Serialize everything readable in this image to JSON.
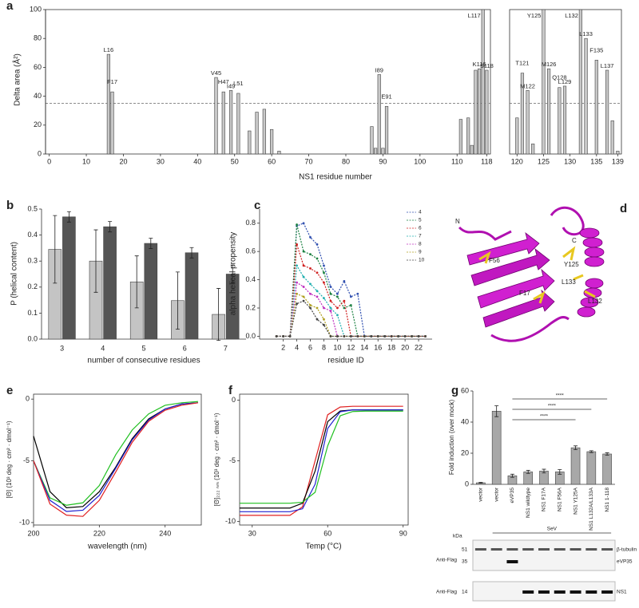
{
  "chart_data": [
    {
      "type": "bar",
      "panel": "a",
      "xlabel": "NS1 residue number",
      "ylabel": "Delta area (Å²)",
      "x": [
        16,
        17,
        45,
        47,
        49,
        51,
        54,
        56,
        58,
        60,
        62,
        87,
        88,
        89,
        90,
        91,
        111,
        113,
        114,
        115,
        116,
        117,
        118,
        120,
        121,
        122,
        123,
        125,
        126,
        128,
        129,
        132,
        133,
        135,
        137,
        138,
        139
      ],
      "values": [
        69,
        43,
        53,
        43,
        44,
        42,
        16,
        29,
        31,
        17,
        2,
        19,
        4,
        55,
        4,
        33,
        24,
        25,
        6,
        58,
        59,
        100,
        58,
        25,
        56,
        44,
        7,
        100,
        59,
        46,
        47,
        100,
        80,
        65,
        58,
        23,
        2
      ],
      "color": "#c8c8c8",
      "ylim": [
        0,
        100
      ],
      "yticks": [
        0,
        20,
        40,
        60,
        80,
        100
      ],
      "reference_line": 35,
      "segments": [
        {
          "xlim": [
            -1,
            119
          ],
          "xticks": [
            0,
            10,
            20,
            30,
            40,
            50,
            60,
            70,
            80,
            90,
            100,
            110,
            118
          ]
        },
        {
          "xlim": [
            118.6,
            139.7
          ],
          "xticks": [
            120,
            125,
            130,
            135,
            139
          ]
        }
      ],
      "annotations": [
        {
          "text": "L16",
          "x": 16
        },
        {
          "text": "F17",
          "x": 17
        },
        {
          "text": "V45",
          "x": 45
        },
        {
          "text": "H47",
          "x": 47
        },
        {
          "text": "I49",
          "x": 49
        },
        {
          "text": "L51",
          "x": 51
        },
        {
          "text": "I89",
          "x": 89
        },
        {
          "text": "E91",
          "x": 91
        },
        {
          "text": "K116",
          "x": 116
        },
        {
          "text": "L117",
          "x": 117
        },
        {
          "text": "S118",
          "x": 118
        },
        {
          "text": "T121",
          "x": 121
        },
        {
          "text": "M122",
          "x": 122
        },
        {
          "text": "Y125",
          "x": 125
        },
        {
          "text": "M126",
          "x": 126
        },
        {
          "text": "Q128",
          "x": 128
        },
        {
          "text": "L129",
          "x": 129
        },
        {
          "text": "L132",
          "x": 132
        },
        {
          "text": "L133",
          "x": 133
        },
        {
          "text": "F135",
          "x": 135
        },
        {
          "text": "L137",
          "x": 137
        }
      ]
    },
    {
      "type": "bar",
      "panel": "b",
      "xlabel": "number of consecutive residues",
      "ylabel": "P (helical content)",
      "categories": [
        "3",
        "4",
        "5",
        "6",
        "7"
      ],
      "series": [
        {
          "color": "#c4c4c4",
          "values": [
            0.345,
            0.3,
            0.22,
            0.148,
            0.095
          ],
          "errors": [
            0.13,
            0.12,
            0.1,
            0.11,
            0.1
          ]
        },
        {
          "color": "#555555",
          "values": [
            0.47,
            0.432,
            0.368,
            0.332,
            0.25
          ],
          "errors": [
            0.02,
            0.02,
            0.02,
            0.02,
            0.035
          ]
        }
      ],
      "ylim": [
        0,
        0.5
      ],
      "yticks": [
        {
          "value": 0,
          "label": "0.0"
        },
        {
          "value": 0.1,
          "label": "0.1"
        },
        {
          "value": 0.2,
          "label": "0.2"
        },
        {
          "value": 0.3,
          "label": "0.3"
        },
        {
          "value": 0.4,
          "label": "0.4"
        },
        {
          "value": 0.5,
          "label": "0.5"
        }
      ]
    },
    {
      "type": "line",
      "panel": "c",
      "xlabel": "residue ID",
      "ylabel": "alpha helical propensity",
      "dashed": true,
      "markers": true,
      "legend": "upper right",
      "x": [
        1,
        2,
        3,
        4,
        5,
        6,
        7,
        8,
        9,
        10,
        11,
        12,
        13,
        14,
        15,
        16,
        17,
        18,
        19,
        20,
        21,
        22,
        23
      ],
      "series": [
        {
          "name": "4",
          "color": "#3050b0",
          "values": [
            0,
            0,
            0,
            0.78,
            0.8,
            0.7,
            0.65,
            0.5,
            0.35,
            0.3,
            0.39,
            0.28,
            0.3,
            0,
            0,
            0,
            0,
            0,
            0,
            0,
            0,
            0,
            0
          ]
        },
        {
          "name": "5",
          "color": "#1a8040",
          "values": [
            0,
            0,
            0,
            0.79,
            0.6,
            0.58,
            0.55,
            0.45,
            0.3,
            0.28,
            0.2,
            0.22,
            0,
            0,
            0,
            0,
            0,
            0,
            0,
            0,
            0,
            0,
            0
          ]
        },
        {
          "name": "6",
          "color": "#d02020",
          "values": [
            0,
            0,
            0,
            0.65,
            0.5,
            0.48,
            0.45,
            0.38,
            0.25,
            0.2,
            0.25,
            0,
            0,
            0,
            0,
            0,
            0,
            0,
            0,
            0,
            0,
            0,
            0
          ]
        },
        {
          "name": "7",
          "color": "#20b0b0",
          "values": [
            0,
            0,
            0,
            0.5,
            0.42,
            0.37,
            0.32,
            0.27,
            0.2,
            0.15,
            0,
            0,
            0,
            0,
            0,
            0,
            0,
            0,
            0,
            0,
            0,
            0,
            0
          ]
        },
        {
          "name": "8",
          "color": "#c030c0",
          "values": [
            0,
            0,
            0,
            0.38,
            0.35,
            0.3,
            0.28,
            0.2,
            0.18,
            0,
            0,
            0,
            0,
            0,
            0,
            0,
            0,
            0,
            0,
            0,
            0,
            0,
            0
          ]
        },
        {
          "name": "9",
          "color": "#b0a020",
          "values": [
            0,
            0,
            0,
            0.3,
            0.28,
            0.22,
            0.2,
            0.12,
            0,
            0,
            0,
            0,
            0,
            0,
            0,
            0,
            0,
            0,
            0,
            0,
            0,
            0,
            0
          ]
        },
        {
          "name": "10",
          "color": "#444444",
          "values": [
            0,
            0,
            0,
            0.23,
            0.25,
            0.2,
            0.12,
            0.08,
            0,
            0,
            0,
            0,
            0,
            0,
            0,
            0,
            0,
            0,
            0,
            0,
            0,
            0,
            0
          ]
        }
      ],
      "xlim": [
        -1.5,
        24
      ],
      "xticks": [
        2,
        4,
        6,
        8,
        10,
        12,
        14,
        16,
        18,
        20,
        22
      ],
      "ylim": [
        -0.02,
        0.9
      ],
      "yticks": [
        {
          "value": 0,
          "label": "0.0"
        },
        {
          "value": 0.2,
          "label": "0.2"
        },
        {
          "value": 0.4,
          "label": "0.4"
        },
        {
          "value": 0.6,
          "label": "0.6"
        },
        {
          "value": 0.8,
          "label": "0.8"
        }
      ]
    },
    {
      "type": "line",
      "panel": "e",
      "xlabel": "wavelength (nm)",
      "ylabel": "[Θ] (10³ deg · cm² · dmol⁻¹)",
      "x": [
        200,
        205,
        210,
        215,
        220,
        225,
        230,
        235,
        240,
        245,
        250
      ],
      "series": [
        {
          "color": "#000000",
          "values": [
            -3,
            -7.5,
            -8.8,
            -8.7,
            -7.5,
            -5.5,
            -3.2,
            -1.6,
            -0.8,
            -0.4,
            -0.3
          ]
        },
        {
          "color": "#20c020",
          "values": [
            -5,
            -8,
            -8.6,
            -8.4,
            -7,
            -4.5,
            -2.5,
            -1.2,
            -0.5,
            -0.3,
            -0.2
          ]
        },
        {
          "color": "#2020d0",
          "values": [
            -5,
            -8.2,
            -9.1,
            -9,
            -7.8,
            -5.6,
            -3.3,
            -1.7,
            -0.8,
            -0.4,
            -0.3
          ]
        },
        {
          "color": "#e02020",
          "values": [
            -5,
            -8.5,
            -9.4,
            -9.5,
            -8.2,
            -5.9,
            -3.5,
            -1.8,
            -0.9,
            -0.5,
            -0.3
          ]
        }
      ],
      "xlim": [
        200,
        251
      ],
      "xticks": [
        200,
        220,
        240
      ],
      "ylim": [
        -10.2,
        0.4
      ],
      "yticks": [
        -10,
        -5,
        0
      ]
    },
    {
      "type": "line",
      "panel": "f",
      "xlabel": "Temp (°C)",
      "ylabel": "[Θ]₂₂₂ ₙₘ (10³ deg · cm² · dmol⁻¹)",
      "x": [
        25,
        30,
        35,
        40,
        45,
        50,
        55,
        60,
        65,
        70,
        75,
        80,
        85,
        90
      ],
      "series": [
        {
          "color": "#e02020",
          "values": [
            -9.5,
            -9.5,
            -9.5,
            -9.5,
            -9.5,
            -8.8,
            -5,
            -1.2,
            -0.56,
            -0.5,
            -0.5,
            -0.5,
            -0.5,
            -0.5
          ]
        },
        {
          "color": "#000000",
          "values": [
            -8.9,
            -8.9,
            -8.9,
            -8.9,
            -8.9,
            -8.5,
            -5.85,
            -1.77,
            -0.89,
            -0.8,
            -0.8,
            -0.8,
            -0.8,
            -0.8
          ]
        },
        {
          "color": "#2020d0",
          "values": [
            -9.2,
            -9.2,
            -9.2,
            -9.2,
            -9.2,
            -8.96,
            -6.94,
            -2.33,
            -0.95,
            -0.8,
            -0.8,
            -0.8,
            -0.8,
            -0.8
          ]
        },
        {
          "color": "#20c020",
          "values": [
            -8.5,
            -8.5,
            -8.5,
            -8.5,
            -8.5,
            -8.42,
            -7.6,
            -3.77,
            -1.28,
            -0.93,
            -0.9,
            -0.9,
            -0.9,
            -0.9
          ]
        }
      ],
      "xlim": [
        25,
        92
      ],
      "xticks": [
        30,
        60,
        90
      ],
      "ylim": [
        -10.3,
        0.5
      ],
      "yticks": [
        -10,
        -5,
        0
      ]
    },
    {
      "type": "bar",
      "panel": "g",
      "ylabel": "Fold induction (over mock)",
      "categories": [
        "vector",
        "vector",
        "eVP35",
        "NS1 wildtype",
        "NS1 F17A",
        "NS1 F56A",
        "NS1 Y125A",
        "NS1 L132A/L133A",
        "NS1 1-118"
      ],
      "values": [
        1,
        47,
        5.5,
        8,
        8.5,
        8,
        23.5,
        21,
        19.5
      ],
      "errors": [
        0.3,
        3.5,
        1,
        1,
        1.2,
        1.5,
        1.2,
        0.6,
        0.8
      ],
      "color": "#a8a8a8",
      "ylim": [
        0,
        60
      ],
      "yticks": [
        0,
        20,
        40,
        60
      ],
      "significance": [
        "****",
        "****",
        "****"
      ],
      "treatment_label": "SeV",
      "blot": {
        "kda_label": "kDa",
        "markers": [
          51,
          35,
          14
        ],
        "antibody_labels": [
          "Anti-Flag",
          "Anti-Flag"
        ],
        "band_labels": [
          "β-tubulin",
          "eVP35",
          "NS1"
        ]
      }
    }
  ],
  "structure": {
    "panel": "d",
    "labels": [
      "N",
      "C",
      "F56",
      "Y125",
      "L133",
      "F17",
      "L132"
    ]
  }
}
